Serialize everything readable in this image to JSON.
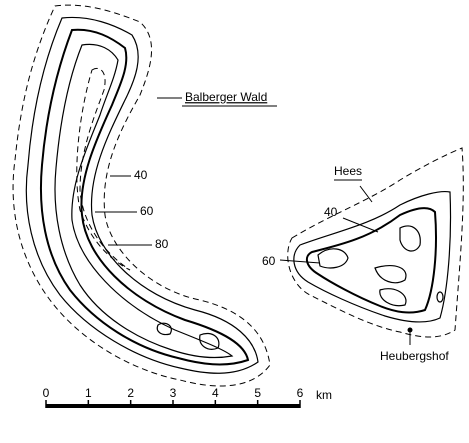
{
  "labels": {
    "forest": "Balberger Wald",
    "west_40": "40",
    "west_60": "60",
    "west_80": "80",
    "hill": "Hees",
    "east_40": "40",
    "east_60": "60",
    "farm": "Heubergshof"
  },
  "scale_bar": {
    "ticks": [
      "0",
      "1",
      "2",
      "3",
      "4",
      "5",
      "6"
    ],
    "unit": "km"
  }
}
